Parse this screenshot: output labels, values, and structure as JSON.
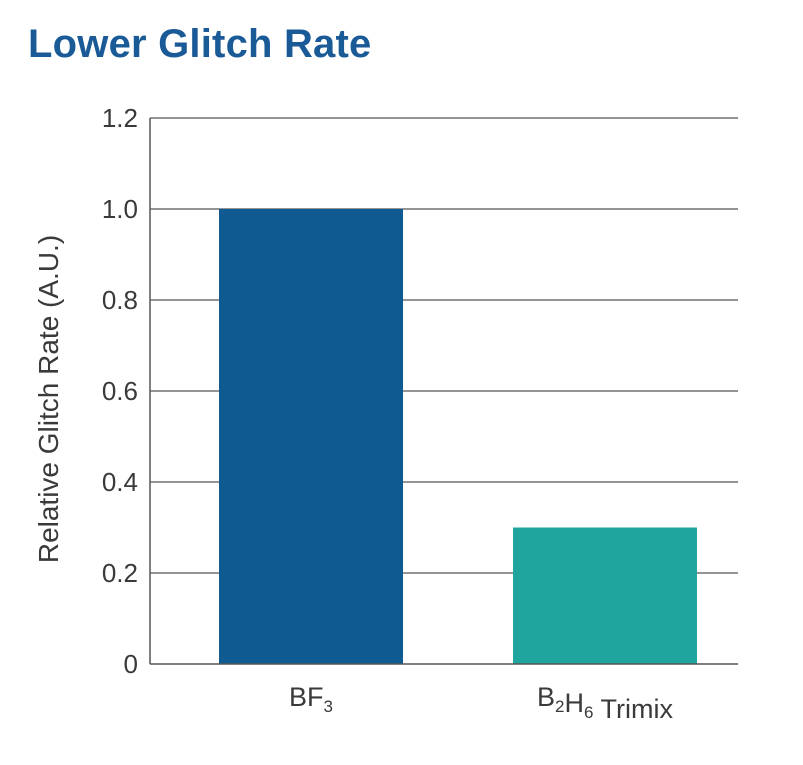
{
  "chart_data": {
    "type": "bar",
    "title": "Lower Glitch Rate",
    "ylabel": "Relative Glitch Rate (A.U.)",
    "xlabel": "",
    "ylim": [
      0,
      1.2
    ],
    "yticks": [
      0,
      0.2,
      0.4,
      0.6,
      0.8,
      1.0,
      1.2
    ],
    "ytick_labels": [
      "0",
      "0.2",
      "0.4",
      "0.6",
      "0.8",
      "1.0",
      "1.2"
    ],
    "grid": true,
    "categories": [
      {
        "parts": [
          {
            "text": "BF",
            "sub": false
          },
          {
            "text": "3",
            "sub": true
          }
        ]
      },
      {
        "parts": [
          {
            "text": "B",
            "sub": false
          },
          {
            "text": "2",
            "sub": true
          },
          {
            "text": "H",
            "sub": false
          },
          {
            "text": "6",
            "sub": true
          },
          {
            "text": " Trimix",
            "sub": false
          }
        ]
      }
    ],
    "values": [
      1.0,
      0.3
    ],
    "colors": [
      "#0e5a91",
      "#1fa59d"
    ]
  },
  "colors": {
    "title": "#1a5a96",
    "text": "#3a3a3a",
    "grid": "#555555"
  }
}
